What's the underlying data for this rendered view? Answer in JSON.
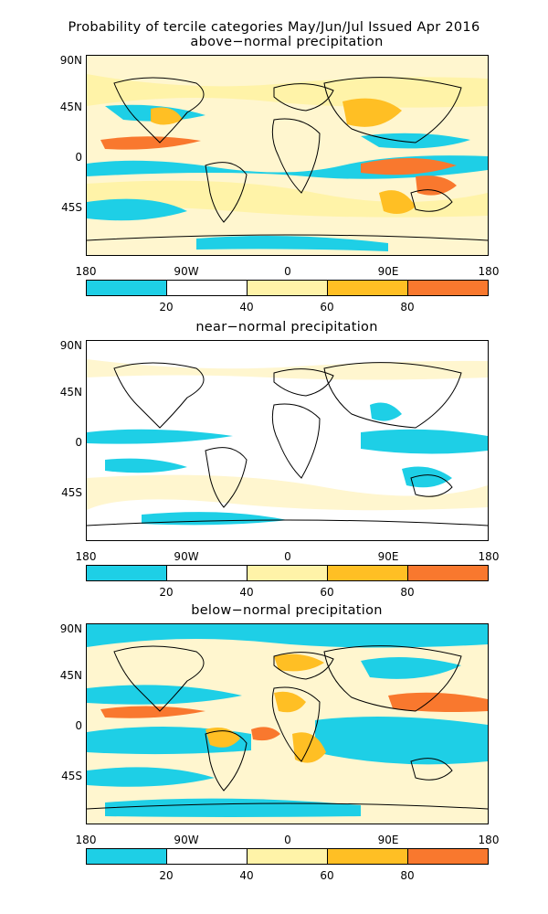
{
  "title_line1": "Probability of tercile categories May/Jun/Jul Issued Apr 2016",
  "panels": [
    {
      "subtitle": "above−normal precipitation"
    },
    {
      "subtitle": "near−normal precipitation"
    },
    {
      "subtitle": "below−normal precipitation"
    }
  ],
  "axes": {
    "lat_labels": [
      "90N",
      "45N",
      "0",
      "45S"
    ],
    "lon_labels": [
      "180",
      "90W",
      "0",
      "90E",
      "180"
    ]
  },
  "colorbar": {
    "labels": [
      "20",
      "40",
      "60",
      "80"
    ],
    "bins": [
      {
        "range": "<20",
        "color": "#1ecfe6"
      },
      {
        "range": "20-40",
        "color": "#ffffff"
      },
      {
        "range": "40-60",
        "color": "#fff3a8"
      },
      {
        "range": "60-80",
        "color": "#ffbf24"
      },
      {
        "range": ">80",
        "color": "#f9782e"
      }
    ]
  }
}
